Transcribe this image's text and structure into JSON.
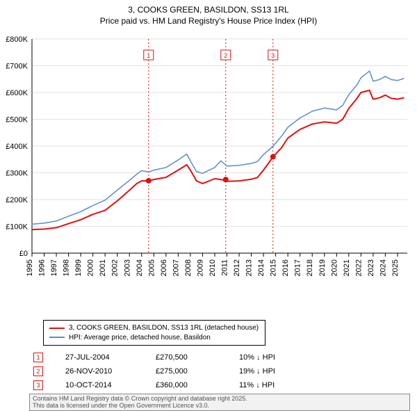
{
  "title_line1": "3, COOKS GREEN, BASILDON, SS13 1RL",
  "title_line2": "Price paid vs. HM Land Registry's House Price Index (HPI)",
  "chart": {
    "type": "line",
    "background_color": "#ffffff",
    "grid_color": "#e2e2e2",
    "axis_color": "#000000",
    "xlim": [
      1995,
      2025.8
    ],
    "ylim": [
      0,
      800000
    ],
    "xticks": [
      1995,
      1996,
      1997,
      1998,
      1999,
      2000,
      2001,
      2002,
      2003,
      2004,
      2005,
      2006,
      2007,
      2008,
      2009,
      2010,
      2011,
      2012,
      2013,
      2014,
      2015,
      2016,
      2017,
      2018,
      2019,
      2020,
      2021,
      2022,
      2023,
      2024,
      2025
    ],
    "yticks": [
      0,
      100000,
      200000,
      300000,
      400000,
      500000,
      600000,
      700000,
      800000
    ],
    "ytick_labels": [
      "£0",
      "£100K",
      "£200K",
      "£300K",
      "£400K",
      "£500K",
      "£600K",
      "£700K",
      "£800K"
    ],
    "label_fontsize": 11,
    "series": [
      {
        "name": "price_paid",
        "color": "#e01010",
        "line_width": 2,
        "x": [
          1995,
          1996,
          1997,
          1998,
          1999,
          2000,
          2001,
          2002,
          2003,
          2003.6,
          2004,
          2004.6,
          2005,
          2006,
          2007,
          2007.7,
          2008,
          2008.5,
          2009,
          2010,
          2010.5,
          2011,
          2012,
          2013,
          2013.5,
          2014,
          2014.8,
          2015.5,
          2016,
          2017,
          2018,
          2019,
          2020,
          2020.5,
          2021,
          2021.7,
          2022,
          2022.7,
          2023,
          2023.5,
          2024,
          2024.5,
          2025,
          2025.5
        ],
        "y": [
          88000,
          90000,
          95000,
          110000,
          125000,
          145000,
          160000,
          195000,
          235000,
          260000,
          270000,
          270500,
          275000,
          283000,
          310000,
          330000,
          310000,
          270000,
          260000,
          278000,
          275000,
          268000,
          270000,
          276000,
          282000,
          310000,
          360000,
          395000,
          430000,
          462000,
          482000,
          490000,
          485000,
          500000,
          540000,
          580000,
          600000,
          608000,
          575000,
          580000,
          590000,
          578000,
          575000,
          580000
        ]
      },
      {
        "name": "hpi",
        "color": "#5a8cc7",
        "line_width": 1.5,
        "x": [
          1995,
          1996,
          1997,
          1998,
          1999,
          2000,
          2001,
          2002,
          2003,
          2003.6,
          2004,
          2004.6,
          2005,
          2006,
          2007,
          2007.7,
          2008,
          2008.5,
          2009,
          2010,
          2010.5,
          2011,
          2012,
          2013,
          2013.5,
          2014,
          2014.8,
          2015.5,
          2016,
          2017,
          2018,
          2019,
          2020,
          2020.5,
          2021,
          2021.7,
          2022,
          2022.7,
          2023,
          2023.5,
          2024,
          2024.5,
          2025,
          2025.5
        ],
        "y": [
          108000,
          112000,
          120000,
          138000,
          155000,
          178000,
          198000,
          235000,
          272000,
          295000,
          308000,
          303000,
          310000,
          320000,
          348000,
          370000,
          345000,
          305000,
          298000,
          320000,
          345000,
          325000,
          328000,
          335000,
          342000,
          368000,
          400000,
          438000,
          470000,
          505000,
          530000,
          542000,
          535000,
          552000,
          592000,
          630000,
          655000,
          680000,
          642000,
          648000,
          660000,
          648000,
          645000,
          652000
        ]
      }
    ],
    "sale_markers": [
      {
        "index": "1",
        "x": 2004.57,
        "y": 270500
      },
      {
        "index": "2",
        "x": 2010.9,
        "y": 275000
      },
      {
        "index": "3",
        "x": 2014.78,
        "y": 360000
      }
    ],
    "marker_line_color": "#e01010",
    "marker_line_dash": "2,3",
    "marker_point_fill": "#e01010",
    "marker_badge_border": "#e01010",
    "marker_badge_text_color": "#e01010"
  },
  "legend": {
    "series1_label": "3, COOKS GREEN, BASILDON, SS13 1RL (detached house)",
    "series1_color": "#e01010",
    "series2_label": "HPI: Average price, detached house, Basildon",
    "series2_color": "#5a8cc7"
  },
  "sales_table": [
    {
      "badge": "1",
      "date": "27-JUL-2004",
      "price": "£270,500",
      "delta": "10% ↓ HPI"
    },
    {
      "badge": "2",
      "date": "26-NOV-2010",
      "price": "£275,000",
      "delta": "19% ↓ HPI"
    },
    {
      "badge": "3",
      "date": "10-OCT-2014",
      "price": "£360,000",
      "delta": "11% ↓ HPI"
    }
  ],
  "footer": {
    "line1": "Contains HM Land Registry data © Crown copyright and database right 2025.",
    "line2": "This data is licensed under the Open Government Licence v3.0.",
    "background_color": "#f2f2f2",
    "border_color": "#888888",
    "text_color": "#525252"
  }
}
